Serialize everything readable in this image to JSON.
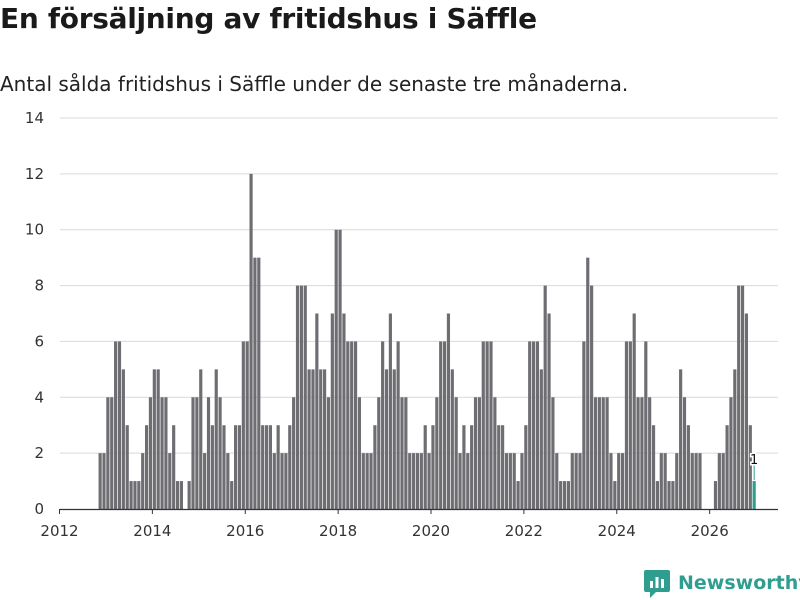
{
  "header": {
    "title": "En försäljning av fritidshus i Säffle",
    "subtitle": "Antal sålda fritidshus i Säffle under de senaste tre månaderna."
  },
  "brand": {
    "name": "Newsworthy"
  },
  "colors": {
    "bar": "#6e6d72",
    "highlight": "#2f9e8f",
    "grid": "#d9d9d9",
    "axis": "#333333"
  },
  "chart_data": {
    "type": "bar",
    "title": "En försäljning av fritidshus i Säffle",
    "xlabel": "",
    "ylabel": "",
    "ylim": [
      0,
      14
    ],
    "y_ticks": [
      0,
      2,
      4,
      6,
      8,
      10,
      12,
      14
    ],
    "x_ticks": [
      "2012",
      "2014",
      "2016",
      "2018",
      "2020",
      "2022",
      "2024",
      "2026"
    ],
    "start": "2012-01",
    "frequency": "monthly",
    "values": [
      0,
      0,
      0,
      0,
      0,
      0,
      0,
      0,
      0,
      0,
      2,
      2,
      4,
      4,
      6,
      6,
      5,
      3,
      1,
      1,
      1,
      2,
      3,
      4,
      5,
      5,
      4,
      4,
      2,
      3,
      1,
      1,
      0,
      1,
      4,
      4,
      5,
      2,
      4,
      3,
      5,
      4,
      3,
      2,
      1,
      3,
      3,
      6,
      6,
      12,
      9,
      9,
      3,
      3,
      3,
      2,
      3,
      2,
      2,
      3,
      4,
      8,
      8,
      8,
      5,
      5,
      7,
      5,
      5,
      4,
      7,
      10,
      10,
      7,
      6,
      6,
      6,
      4,
      2,
      2,
      2,
      3,
      4,
      6,
      5,
      7,
      5,
      6,
      4,
      4,
      2,
      2,
      2,
      2,
      3,
      2,
      3,
      4,
      6,
      6,
      7,
      5,
      4,
      2,
      3,
      2,
      3,
      4,
      4,
      6,
      6,
      6,
      4,
      3,
      3,
      2,
      2,
      2,
      1,
      2,
      3,
      6,
      6,
      6,
      5,
      8,
      7,
      4,
      2,
      1,
      1,
      1,
      2,
      2,
      2,
      6,
      9,
      8,
      4,
      4,
      4,
      4,
      2,
      1,
      2,
      2,
      6,
      6,
      7,
      4,
      4,
      6,
      4,
      3,
      1,
      2,
      2,
      1,
      1,
      2,
      5,
      4,
      3,
      2,
      2,
      2,
      0,
      0,
      0,
      1,
      2,
      2,
      3,
      4,
      5,
      8,
      8,
      7,
      3,
      1
    ],
    "highlight_last": true,
    "last_value_label": "1"
  }
}
